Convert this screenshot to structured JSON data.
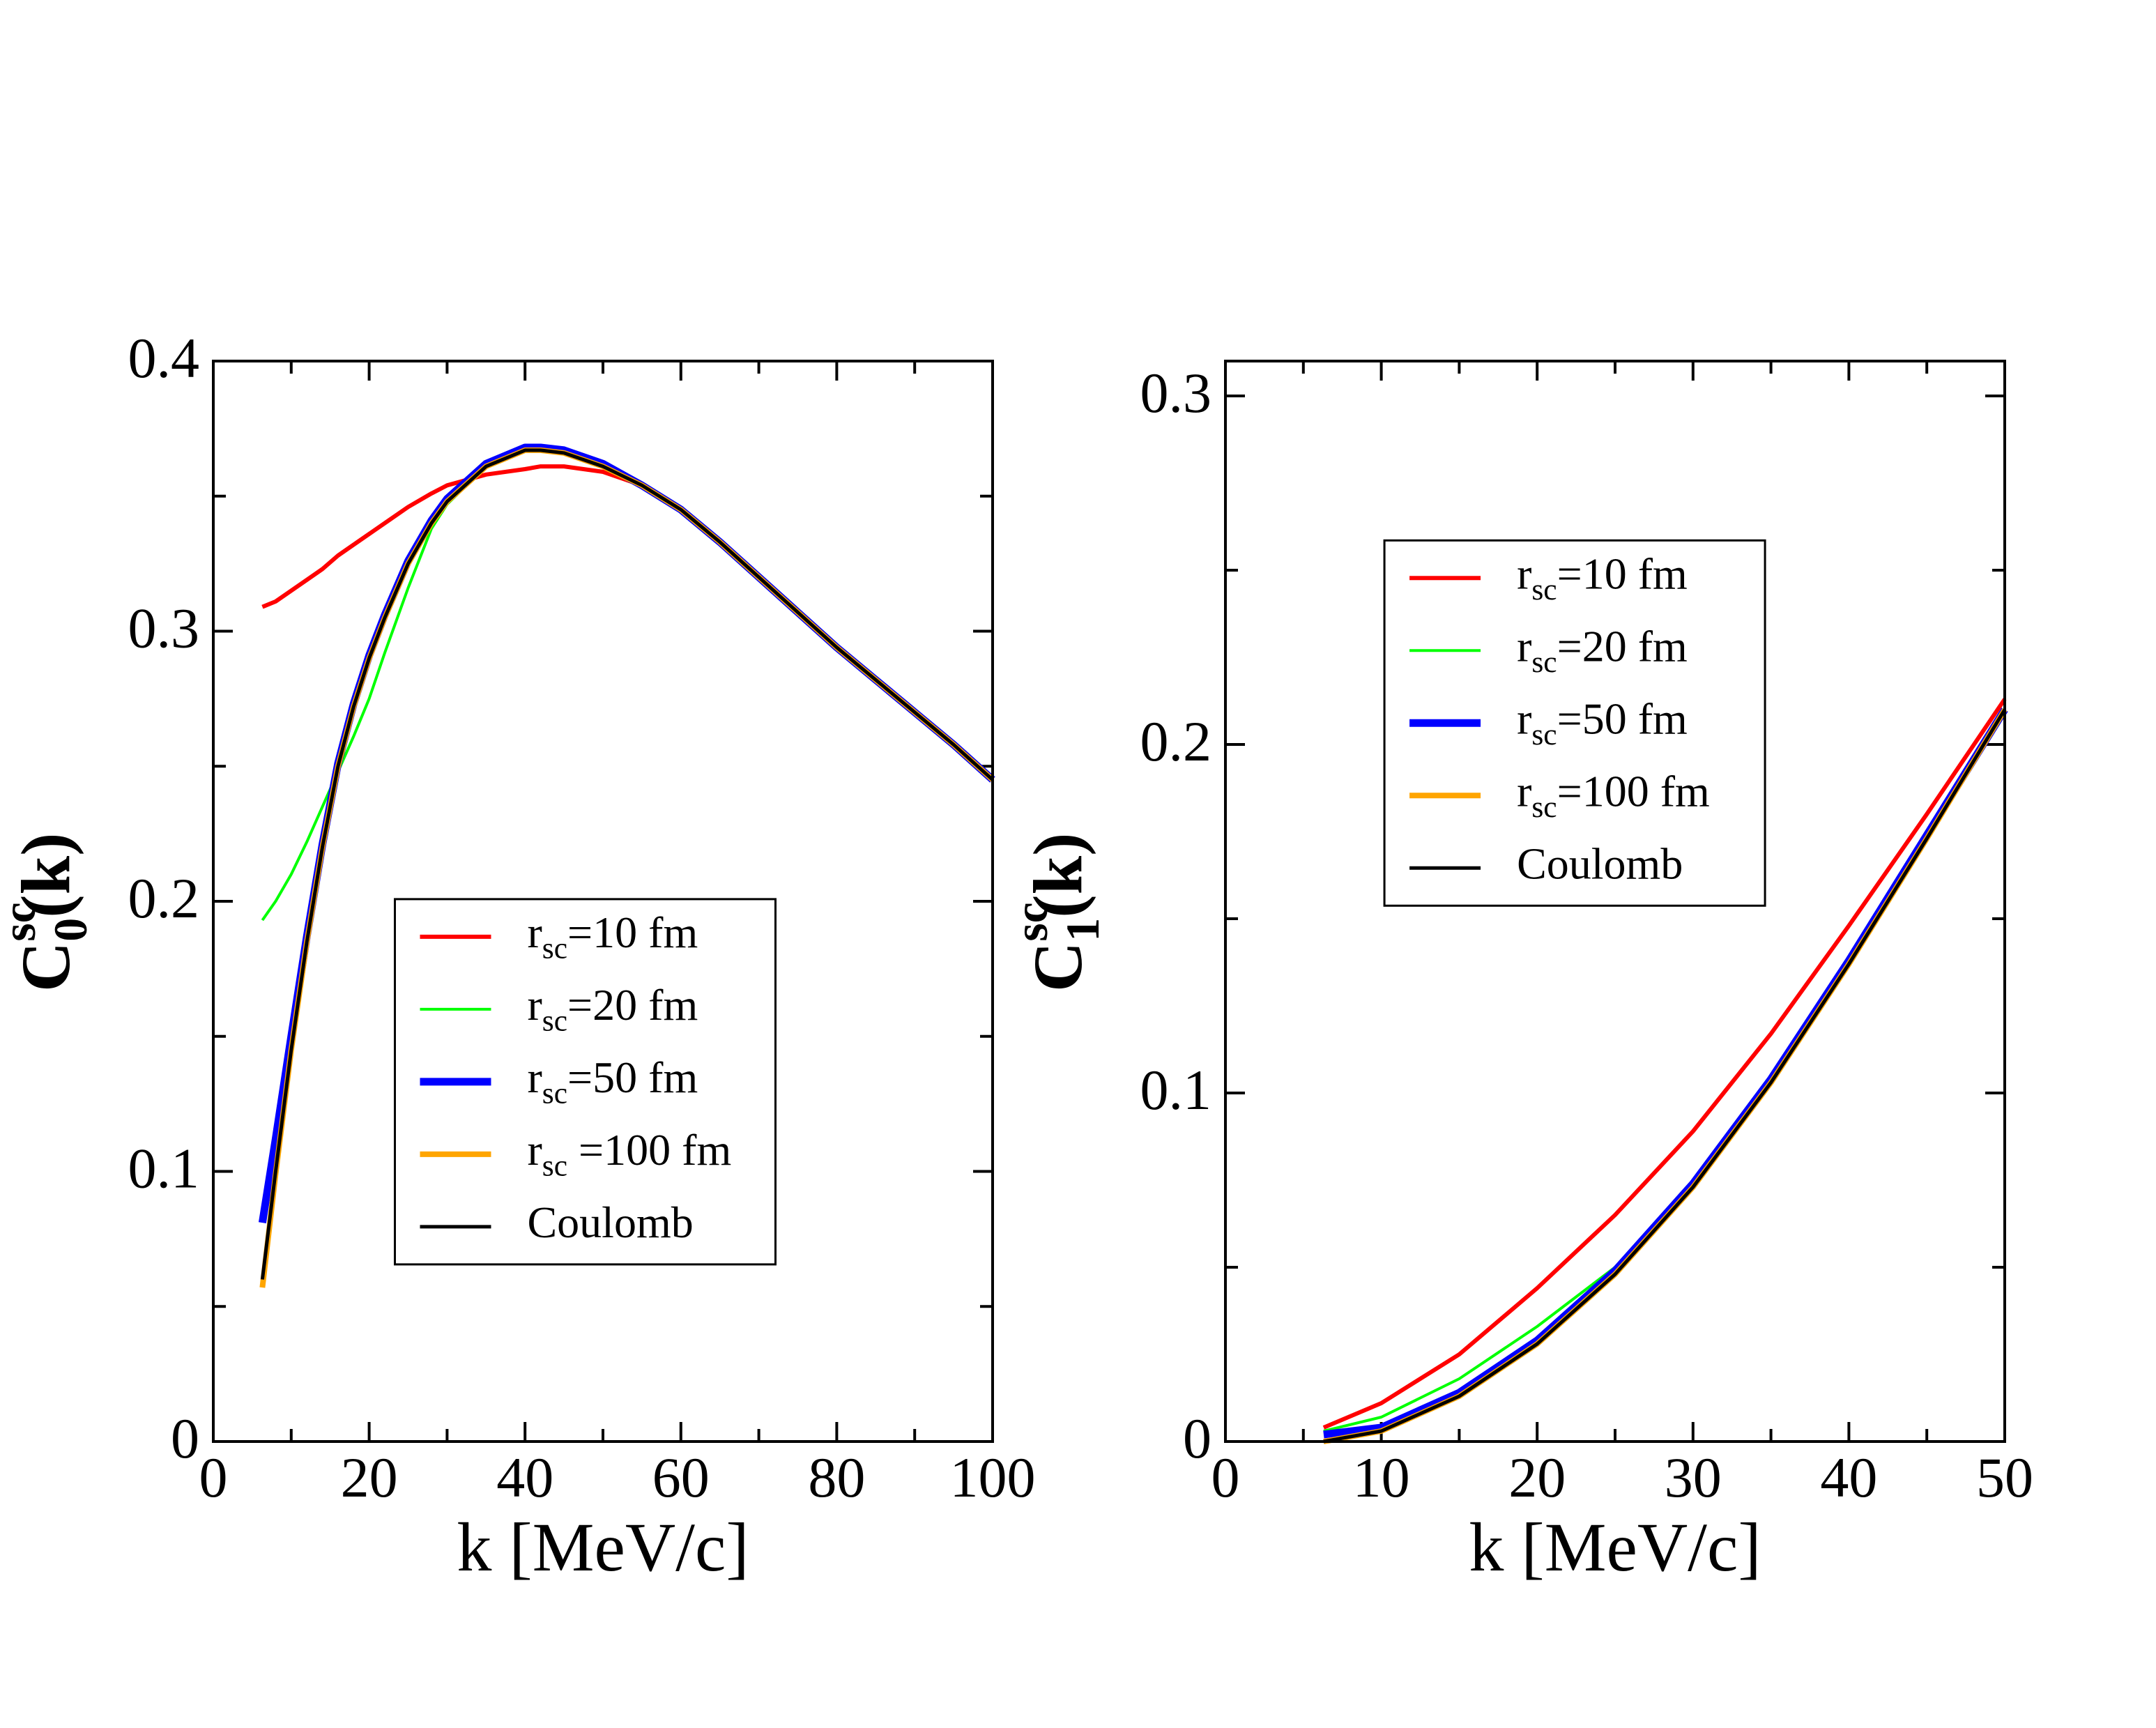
{
  "chart_data": [
    {
      "type": "line",
      "xlabel": "k [MeV/c]",
      "ylabel": [
        {
          "text": "C"
        },
        {
          "sup": "sc"
        },
        {
          "sub": "0"
        },
        {
          "text": "(k)"
        }
      ],
      "xlim": [
        0,
        100
      ],
      "ylim": [
        0,
        0.4
      ],
      "xticks": [
        0,
        20,
        40,
        60,
        80,
        100
      ],
      "xminor": [
        10,
        30,
        50,
        70,
        90
      ],
      "yticks": [
        0,
        0.1,
        0.2,
        0.3,
        0.4
      ],
      "yminor": [
        0.05,
        0.15,
        0.25,
        0.35
      ],
      "legend": "lower center",
      "x": [
        6.3,
        8,
        10,
        12,
        14,
        16,
        18,
        20,
        22,
        25,
        28,
        30,
        35,
        40,
        42,
        45,
        50,
        55,
        60,
        65,
        70,
        75,
        80,
        85,
        90,
        95,
        100
      ],
      "series": [
        {
          "name": [
            {
              "text": "r"
            },
            {
              "sub": "sc"
            },
            {
              "text": "=10 fm"
            }
          ],
          "color": "#ff0000",
          "values": [
            0.309,
            0.311,
            0.315,
            0.319,
            0.323,
            0.328,
            0.332,
            0.336,
            0.34,
            0.346,
            0.351,
            0.354,
            0.358,
            0.36,
            0.361,
            0.361,
            0.359,
            0.354,
            0.345,
            0.333,
            0.32,
            0.307,
            0.294,
            0.282,
            0.27,
            0.258,
            0.245
          ]
        },
        {
          "name": [
            {
              "text": "r"
            },
            {
              "sub": "sc"
            },
            {
              "text": "=20 fm"
            }
          ],
          "color": "#00ff00",
          "values": [
            0.193,
            0.2,
            0.21,
            0.222,
            0.235,
            0.248,
            0.261,
            0.275,
            0.292,
            0.316,
            0.338,
            0.347,
            0.361,
            0.367,
            0.367,
            0.366,
            0.361,
            0.354,
            0.345,
            0.333,
            0.32,
            0.307,
            0.294,
            0.282,
            0.27,
            0.258,
            0.245
          ]
        },
        {
          "name": [
            {
              "text": "r"
            },
            {
              "sub": "sc"
            },
            {
              "text": "=50 fm"
            }
          ],
          "color": "#0000ff",
          "values": [
            0.081,
            0.112,
            0.15,
            0.187,
            0.221,
            0.251,
            0.273,
            0.291,
            0.306,
            0.326,
            0.341,
            0.349,
            0.362,
            0.368,
            0.368,
            0.367,
            0.362,
            0.354,
            0.345,
            0.333,
            0.32,
            0.307,
            0.294,
            0.282,
            0.27,
            0.258,
            0.245
          ]
        },
        {
          "name": [
            {
              "text": "r"
            },
            {
              "sub": "sc"
            },
            {
              "text": " =100 fm"
            }
          ],
          "color": "#ffa500",
          "values": [
            0.057,
            0.099,
            0.145,
            0.185,
            0.22,
            0.25,
            0.272,
            0.29,
            0.305,
            0.325,
            0.34,
            0.348,
            0.361,
            0.367,
            0.367,
            0.366,
            0.361,
            0.354,
            0.345,
            0.333,
            0.32,
            0.307,
            0.294,
            0.282,
            0.27,
            0.258,
            0.245
          ]
        },
        {
          "name": [
            {
              "text": "Coulomb"
            }
          ],
          "color": "#000000",
          "values": [
            0.06,
            0.1,
            0.145,
            0.185,
            0.22,
            0.25,
            0.272,
            0.29,
            0.305,
            0.325,
            0.34,
            0.348,
            0.361,
            0.367,
            0.367,
            0.366,
            0.361,
            0.354,
            0.345,
            0.333,
            0.32,
            0.307,
            0.294,
            0.282,
            0.27,
            0.258,
            0.245
          ]
        }
      ]
    },
    {
      "type": "line",
      "xlabel": "k [MeV/c]",
      "ylabel": [
        {
          "text": "C"
        },
        {
          "sup": "sc"
        },
        {
          "sub": "1"
        },
        {
          "text": "(k)"
        }
      ],
      "xlim": [
        0,
        50
      ],
      "ylim": [
        0,
        0.31
      ],
      "xticks": [
        0,
        10,
        20,
        30,
        40,
        50
      ],
      "xminor": [
        5,
        15,
        25,
        35,
        45
      ],
      "yticks": [
        0,
        0.1,
        0.2,
        0.3
      ],
      "yminor": [
        0.05,
        0.15,
        0.25
      ],
      "legend": "upper left",
      "x": [
        6.3,
        10,
        15,
        20,
        25,
        30,
        35,
        40,
        45,
        50
      ],
      "series": [
        {
          "name": [
            {
              "text": "r"
            },
            {
              "sub": "sc"
            },
            {
              "text": "=10 fm"
            }
          ],
          "color": "#ff0000",
          "values": [
            0.004,
            0.011,
            0.025,
            0.044,
            0.065,
            0.089,
            0.117,
            0.148,
            0.18,
            0.213
          ]
        },
        {
          "name": [
            {
              "text": "r"
            },
            {
              "sub": "sc"
            },
            {
              "text": "=20 fm"
            }
          ],
          "color": "#00ff00",
          "values": [
            0.003,
            0.007,
            0.018,
            0.033,
            0.05,
            0.074,
            0.104,
            0.138,
            0.174,
            0.21
          ]
        },
        {
          "name": [
            {
              "text": "r"
            },
            {
              "sub": "sc"
            },
            {
              "text": "=50 fm"
            }
          ],
          "color": "#0000ff",
          "values": [
            0.002,
            0.004,
            0.014,
            0.029,
            0.049,
            0.074,
            0.104,
            0.138,
            0.174,
            0.21
          ]
        },
        {
          "name": [
            {
              "text": "r"
            },
            {
              "sub": "sc"
            },
            {
              "text": "=100 fm"
            }
          ],
          "color": "#ffa500",
          "values": [
            0.0,
            0.003,
            0.013,
            0.028,
            0.048,
            0.073,
            0.103,
            0.137,
            0.173,
            0.21
          ]
        },
        {
          "name": [
            {
              "text": "Coulomb"
            }
          ],
          "color": "#000000",
          "values": [
            0.0,
            0.003,
            0.013,
            0.028,
            0.048,
            0.073,
            0.103,
            0.137,
            0.173,
            0.21
          ]
        }
      ]
    }
  ]
}
